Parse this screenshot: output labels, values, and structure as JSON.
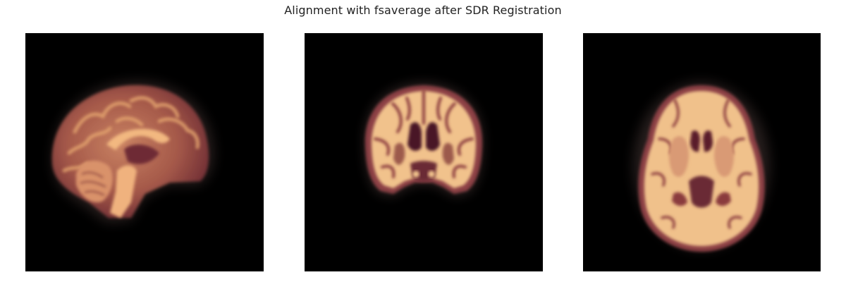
{
  "figure": {
    "title": "Alignment with fsaverage after SDR Registration"
  },
  "panels": [
    {
      "view": "sagittal"
    },
    {
      "view": "coronal"
    },
    {
      "view": "axial"
    }
  ],
  "colors": {
    "background": "#ffffff",
    "panel_background": "#000000",
    "white_matter": "#f2c48f",
    "gray_matter": "#8a3a3c",
    "csf_dark": "#4a1626",
    "title_text": "#222222"
  }
}
